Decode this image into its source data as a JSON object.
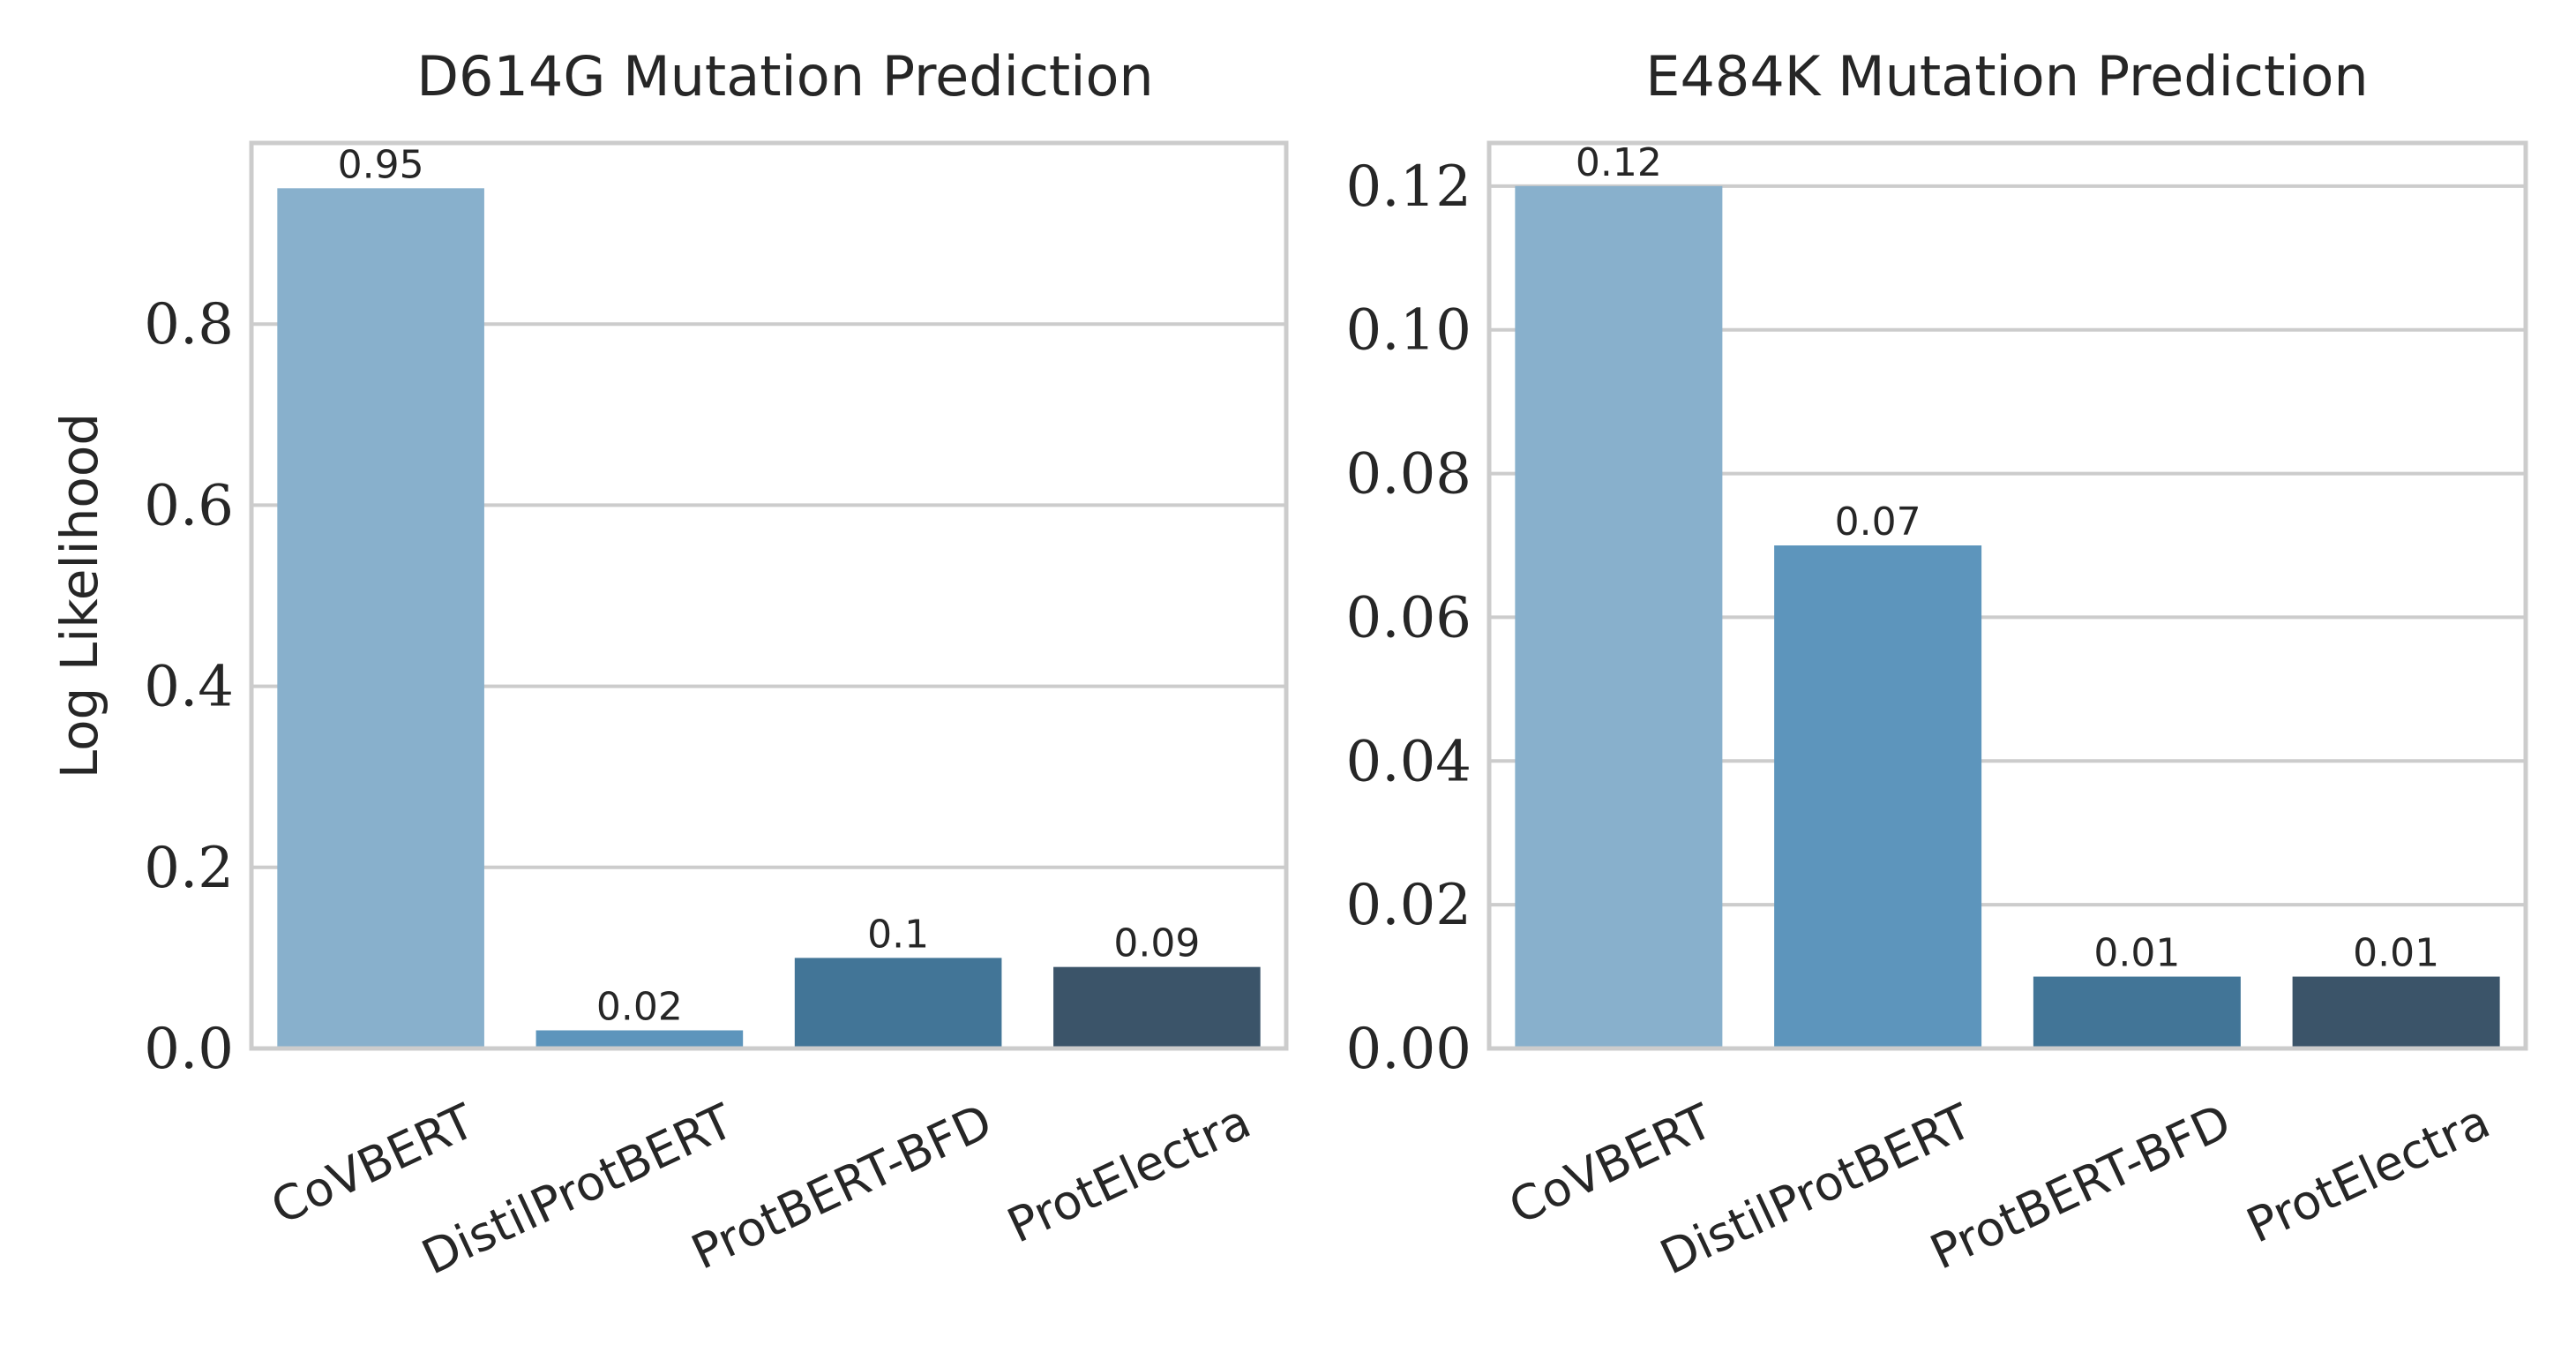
{
  "chart_data": [
    {
      "type": "bar",
      "title": "D614G Mutation Prediction",
      "xlabel": "",
      "ylabel": "Log Likelihood",
      "categories": [
        "CoVBERT",
        "DistilProtBERT",
        "ProtBERT-BFD",
        "ProtElectra"
      ],
      "values": [
        0.95,
        0.02,
        0.1,
        0.09
      ],
      "data_labels": [
        "0.95",
        "0.02",
        "0.1",
        "0.09"
      ],
      "ylim": [
        0,
        1.0
      ],
      "yticks": [
        0.0,
        0.2,
        0.4,
        0.6,
        0.8
      ],
      "ytick_labels": [
        "0.0",
        "0.2",
        "0.4",
        "0.6",
        "0.8"
      ],
      "grid": true,
      "colors": [
        "#88b0cc",
        "#5d95bc",
        "#427597",
        "#3b5469"
      ]
    },
    {
      "type": "bar",
      "title": "E484K Mutation Prediction",
      "xlabel": "",
      "ylabel": "",
      "categories": [
        "CoVBERT",
        "DistilProtBERT",
        "ProtBERT-BFD",
        "ProtElectra"
      ],
      "values": [
        0.12,
        0.07,
        0.01,
        0.01
      ],
      "data_labels": [
        "0.12",
        "0.07",
        "0.01",
        "0.01"
      ],
      "ylim": [
        0,
        0.126
      ],
      "yticks": [
        0.0,
        0.02,
        0.04,
        0.06,
        0.08,
        0.1,
        0.12
      ],
      "ytick_labels": [
        "0.00",
        "0.02",
        "0.04",
        "0.06",
        "0.08",
        "0.10",
        "0.12"
      ],
      "grid": true,
      "colors": [
        "#88b0cc",
        "#5d95bc",
        "#427597",
        "#3b5469"
      ]
    }
  ]
}
